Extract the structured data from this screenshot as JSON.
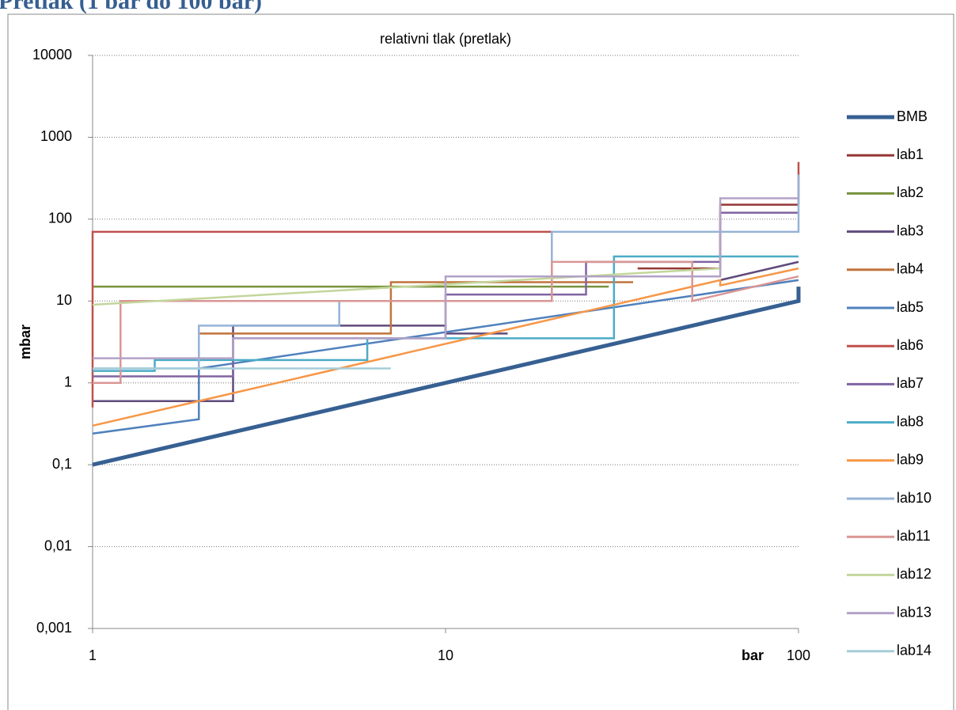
{
  "chart_data": {
    "type": "line",
    "title": "Pretlak (1 bar do 100 bar)",
    "subtitle": "relativni tlak (pretlak)",
    "x_label": "bar",
    "y_label": "mbar",
    "xscale": "log",
    "yscale": "log",
    "grid": true,
    "legend": "right",
    "xlim": [
      1,
      100
    ],
    "xticks": [
      1,
      10,
      100
    ],
    "ylim": [
      0.001,
      10000
    ],
    "yticks": [
      {
        "value": 0.001,
        "label": "0,001"
      },
      {
        "value": 0.01,
        "label": "0,01"
      },
      {
        "value": 0.1,
        "label": "0,1"
      },
      1,
      10,
      100,
      1000,
      10000
    ],
    "series": [
      {
        "name": "BMB",
        "color": "#376092",
        "x": [
          1,
          100,
          100
        ],
        "values": [
          0.1,
          10,
          15
        ]
      },
      {
        "name": "lab1",
        "color": "#953735",
        "x": [
          35,
          60,
          60,
          100
        ],
        "values": [
          25,
          25,
          150,
          150
        ]
      },
      {
        "name": "lab2",
        "color": "#77933c",
        "x": [
          1,
          29
        ],
        "values": [
          15,
          15
        ]
      },
      {
        "name": "lab3",
        "color": "#604a7b",
        "x": [
          1,
          2.5,
          2.5,
          10,
          10,
          15,
          15,
          60,
          100
        ],
        "values": [
          0.6,
          0.6,
          5,
          5,
          4,
          4,
          null,
          18,
          30
        ]
      },
      {
        "name": "lab4",
        "color": "#c0733a",
        "x": [
          2,
          7,
          7,
          34
        ],
        "values": [
          4,
          4,
          17,
          17
        ]
      },
      {
        "name": "lab5",
        "color": "#4f81bd",
        "x": [
          1,
          2,
          2,
          100
        ],
        "values": [
          0.24,
          0.36,
          1.5,
          18
        ]
      },
      {
        "name": "lab6",
        "color": "#c0504d",
        "x": [
          1,
          1,
          20,
          100,
          100,
          100
        ],
        "values": [
          0.5,
          70,
          70,
          null,
          150,
          500
        ]
      },
      {
        "name": "lab7",
        "color": "#8064a2",
        "x": [
          1,
          2.5,
          2.5,
          10,
          10,
          25,
          25,
          60,
          60,
          100
        ],
        "values": [
          1.2,
          1.2,
          3.5,
          3.5,
          12,
          12,
          30,
          30,
          120,
          120
        ]
      },
      {
        "name": "lab8",
        "color": "#4bacc6",
        "x": [
          1,
          1.5,
          1.5,
          6,
          6,
          30,
          30,
          100
        ],
        "values": [
          1.4,
          1.4,
          1.9,
          1.9,
          3.5,
          3.5,
          35,
          35
        ]
      },
      {
        "name": "lab9",
        "color": "#f79646",
        "x": [
          1,
          60,
          60,
          100
        ],
        "values": [
          0.3,
          18,
          15.5,
          25
        ]
      },
      {
        "name": "lab10",
        "color": "#95b3d7",
        "x": [
          1,
          2,
          2,
          5,
          5,
          20,
          20,
          100,
          100
        ],
        "values": [
          1.5,
          1.5,
          5,
          5,
          10,
          10,
          70,
          70,
          350
        ]
      },
      {
        "name": "lab11",
        "color": "#d99694",
        "x": [
          1,
          1.2,
          1.2,
          20,
          20,
          50,
          50,
          100
        ],
        "values": [
          1,
          1,
          10,
          10,
          30,
          30,
          10,
          20
        ]
      },
      {
        "name": "lab12",
        "color": "#c3d69b",
        "x": [
          1,
          60
        ],
        "values": [
          9,
          25
        ]
      },
      {
        "name": "lab13",
        "color": "#b3a2c7",
        "x": [
          1,
          2.5,
          2.5,
          10,
          10,
          60,
          60,
          100
        ],
        "values": [
          2,
          2,
          3.5,
          3.5,
          20,
          20,
          180,
          180
        ]
      },
      {
        "name": "lab14",
        "color": "#a5cdd8",
        "x": [
          1,
          7
        ],
        "values": [
          1.5,
          1.5
        ]
      }
    ]
  }
}
